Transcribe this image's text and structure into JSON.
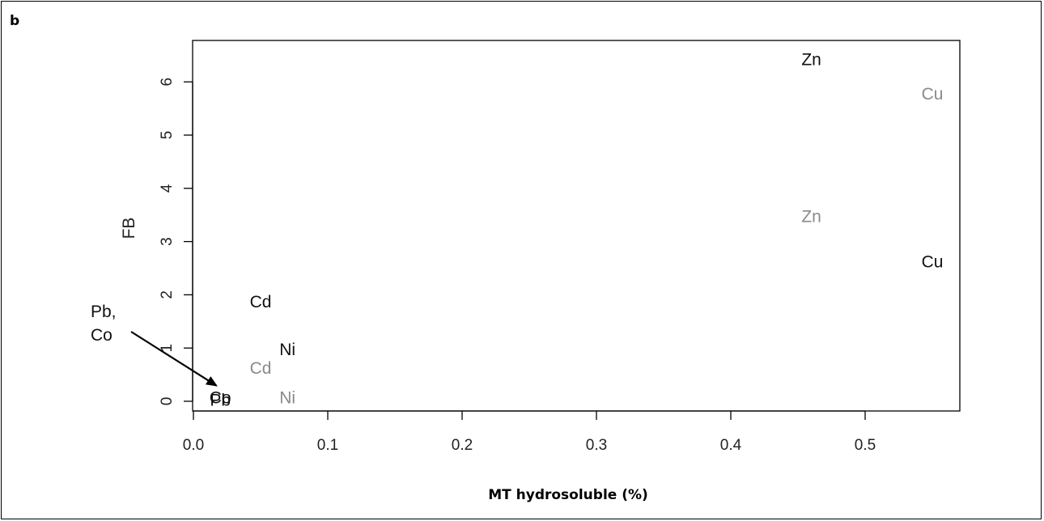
{
  "panel_label": "b",
  "chart_data": {
    "type": "scatter",
    "title": "",
    "xlabel": "MT hydrosoluble (%)",
    "ylabel": "FB",
    "xlim": [
      0.0,
      0.57
    ],
    "ylim": [
      -0.2,
      6.7
    ],
    "x_ticks": [
      "0.0",
      "0.1",
      "0.2",
      "0.3",
      "0.4",
      "0.5"
    ],
    "y_ticks": [
      "0",
      "1",
      "2",
      "3",
      "4",
      "5",
      "6"
    ],
    "grid": false,
    "colors": {
      "dark": "#111111",
      "gray": "#8a8a8a"
    },
    "points": [
      {
        "label": "Zn",
        "x": 0.46,
        "y": 6.4,
        "color": "dark"
      },
      {
        "label": "Cu",
        "x": 0.55,
        "y": 5.75,
        "color": "gray"
      },
      {
        "label": "Zn",
        "x": 0.46,
        "y": 3.45,
        "color": "gray"
      },
      {
        "label": "Cu",
        "x": 0.55,
        "y": 2.6,
        "color": "dark"
      },
      {
        "label": "Cd",
        "x": 0.05,
        "y": 1.85,
        "color": "dark"
      },
      {
        "label": "Ni",
        "x": 0.07,
        "y": 0.95,
        "color": "dark"
      },
      {
        "label": "Cd",
        "x": 0.05,
        "y": 0.6,
        "color": "gray"
      },
      {
        "label": "Ni",
        "x": 0.07,
        "y": 0.05,
        "color": "gray"
      },
      {
        "label": "Pb",
        "x": 0.02,
        "y": 0.0,
        "color": "dark"
      },
      {
        "label": "Co",
        "x": 0.02,
        "y": 0.05,
        "color": "dark"
      }
    ],
    "annotation": {
      "lines": [
        "Pb,",
        "Co"
      ],
      "arrow_to": {
        "x": 0.011,
        "y": 0.25
      }
    }
  }
}
